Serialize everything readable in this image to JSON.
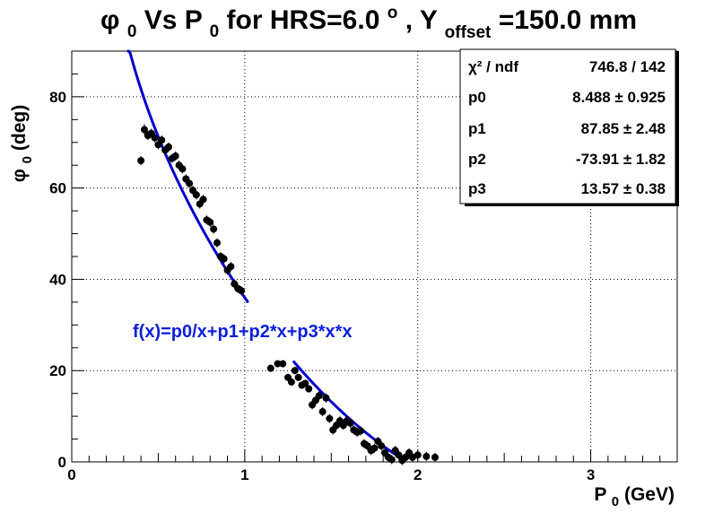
{
  "chart_data": {
    "type": "scatter",
    "title": {
      "phi": "φ",
      "phi_sub": "0",
      "vs": " Vs P",
      "p_sub": "0",
      "middle": " for HRS=6.0",
      "deg_sup": "o",
      "comma_y": ", Y",
      "offset_sub": "offset",
      "end": "=150.0 mm"
    },
    "xlabel": {
      "main": "P",
      "sub": "0",
      "rest": " (GeV)"
    },
    "ylabel": {
      "main": "φ",
      "sub": "0",
      "rest": " (deg)"
    },
    "xlim": [
      0,
      3.5
    ],
    "ylim": [
      0,
      90
    ],
    "x_ticks": [
      0,
      1,
      2,
      3
    ],
    "y_ticks": [
      0,
      20,
      40,
      60,
      80
    ],
    "grid": true,
    "fit_label": "f(x)=p0/x+p1+p2*x+p3*x*x",
    "stats": {
      "rows": [
        {
          "label": "χ² / ndf",
          "value": "746.8 / 142"
        },
        {
          "label": "p0",
          "value": "8.488 ± 0.925"
        },
        {
          "label": "p1",
          "value": "87.85 ± 2.48"
        },
        {
          "label": "p2",
          "value": "-73.91 ± 1.82"
        },
        {
          "label": "p3",
          "value": "13.57 ± 0.38"
        }
      ]
    },
    "fit_segments": [
      {
        "x_start": 0.32,
        "x_end": 1.02
      },
      {
        "x_start": 1.28,
        "x_end": 1.91
      }
    ],
    "points": [
      [
        0.4,
        66.0,
        1.0
      ],
      [
        0.42,
        72.8,
        1.2
      ],
      [
        0.44,
        71.5,
        1.0
      ],
      [
        0.46,
        72.0,
        1.0
      ],
      [
        0.48,
        71.0,
        1.0
      ],
      [
        0.5,
        69.5,
        1.0
      ],
      [
        0.52,
        70.5,
        1.0
      ],
      [
        0.54,
        68.3,
        1.0
      ],
      [
        0.56,
        69.0,
        1.0
      ],
      [
        0.58,
        66.5,
        1.0
      ],
      [
        0.6,
        67.0,
        1.0
      ],
      [
        0.62,
        65.0,
        1.0
      ],
      [
        0.64,
        64.2,
        1.0
      ],
      [
        0.66,
        62.0,
        1.0
      ],
      [
        0.68,
        61.0,
        1.0
      ],
      [
        0.7,
        59.5,
        1.0
      ],
      [
        0.72,
        58.5,
        1.0
      ],
      [
        0.74,
        56.5,
        1.0
      ],
      [
        0.76,
        57.5,
        1.0
      ],
      [
        0.78,
        53.0,
        1.0
      ],
      [
        0.8,
        52.5,
        1.0
      ],
      [
        0.82,
        51.0,
        1.0
      ],
      [
        0.84,
        48.0,
        1.0
      ],
      [
        0.86,
        45.0,
        1.0
      ],
      [
        0.88,
        44.5,
        1.0
      ],
      [
        0.9,
        42.0,
        1.0
      ],
      [
        0.92,
        42.8,
        1.0
      ],
      [
        0.94,
        39.0,
        1.0
      ],
      [
        0.96,
        38.0,
        1.0
      ],
      [
        0.98,
        37.5,
        1.0
      ],
      [
        1.15,
        20.5,
        0.8
      ],
      [
        1.19,
        21.5,
        0.8
      ],
      [
        1.22,
        21.5,
        0.8
      ],
      [
        1.25,
        18.5,
        0.8
      ],
      [
        1.27,
        17.5,
        0.8
      ],
      [
        1.29,
        20.0,
        0.8
      ],
      [
        1.31,
        18.5,
        0.8
      ],
      [
        1.33,
        16.8,
        0.8
      ],
      [
        1.35,
        17.2,
        0.8
      ],
      [
        1.37,
        16.0,
        0.8
      ],
      [
        1.39,
        12.5,
        1.0
      ],
      [
        1.41,
        13.5,
        1.0
      ],
      [
        1.43,
        14.5,
        1.0
      ],
      [
        1.45,
        11.0,
        1.0
      ],
      [
        1.47,
        14.0,
        1.0
      ],
      [
        1.49,
        9.5,
        1.0
      ],
      [
        1.51,
        7.0,
        1.0
      ],
      [
        1.53,
        8.0,
        1.0
      ],
      [
        1.55,
        9.0,
        1.0
      ],
      [
        1.57,
        8.0,
        1.0
      ],
      [
        1.59,
        9.0,
        1.0
      ],
      [
        1.61,
        8.5,
        1.0
      ],
      [
        1.63,
        7.0,
        1.0
      ],
      [
        1.65,
        6.5,
        1.0
      ],
      [
        1.67,
        6.8,
        1.0
      ],
      [
        1.69,
        4.0,
        1.0
      ],
      [
        1.71,
        3.5,
        1.0
      ],
      [
        1.73,
        2.5,
        1.0
      ],
      [
        1.75,
        3.0,
        1.0
      ],
      [
        1.77,
        4.5,
        1.0
      ],
      [
        1.79,
        3.5,
        1.0
      ],
      [
        1.81,
        2.0,
        1.0
      ],
      [
        1.83,
        1.0,
        1.0
      ],
      [
        1.85,
        0.5,
        1.0
      ],
      [
        1.87,
        2.5,
        1.0
      ],
      [
        1.89,
        1.5,
        1.0
      ],
      [
        1.91,
        0.3,
        1.0
      ],
      [
        1.93,
        1.0,
        1.0
      ],
      [
        1.95,
        2.0,
        1.0
      ],
      [
        1.97,
        1.0,
        1.0
      ],
      [
        2.0,
        1.5,
        1.0
      ],
      [
        2.05,
        1.2,
        1.0
      ],
      [
        2.1,
        1.0,
        1.0
      ]
    ],
    "colors": {
      "fit": "#0000cc",
      "formula": "#0b1fd6",
      "marker": "#000000",
      "grid": "#000000"
    }
  }
}
